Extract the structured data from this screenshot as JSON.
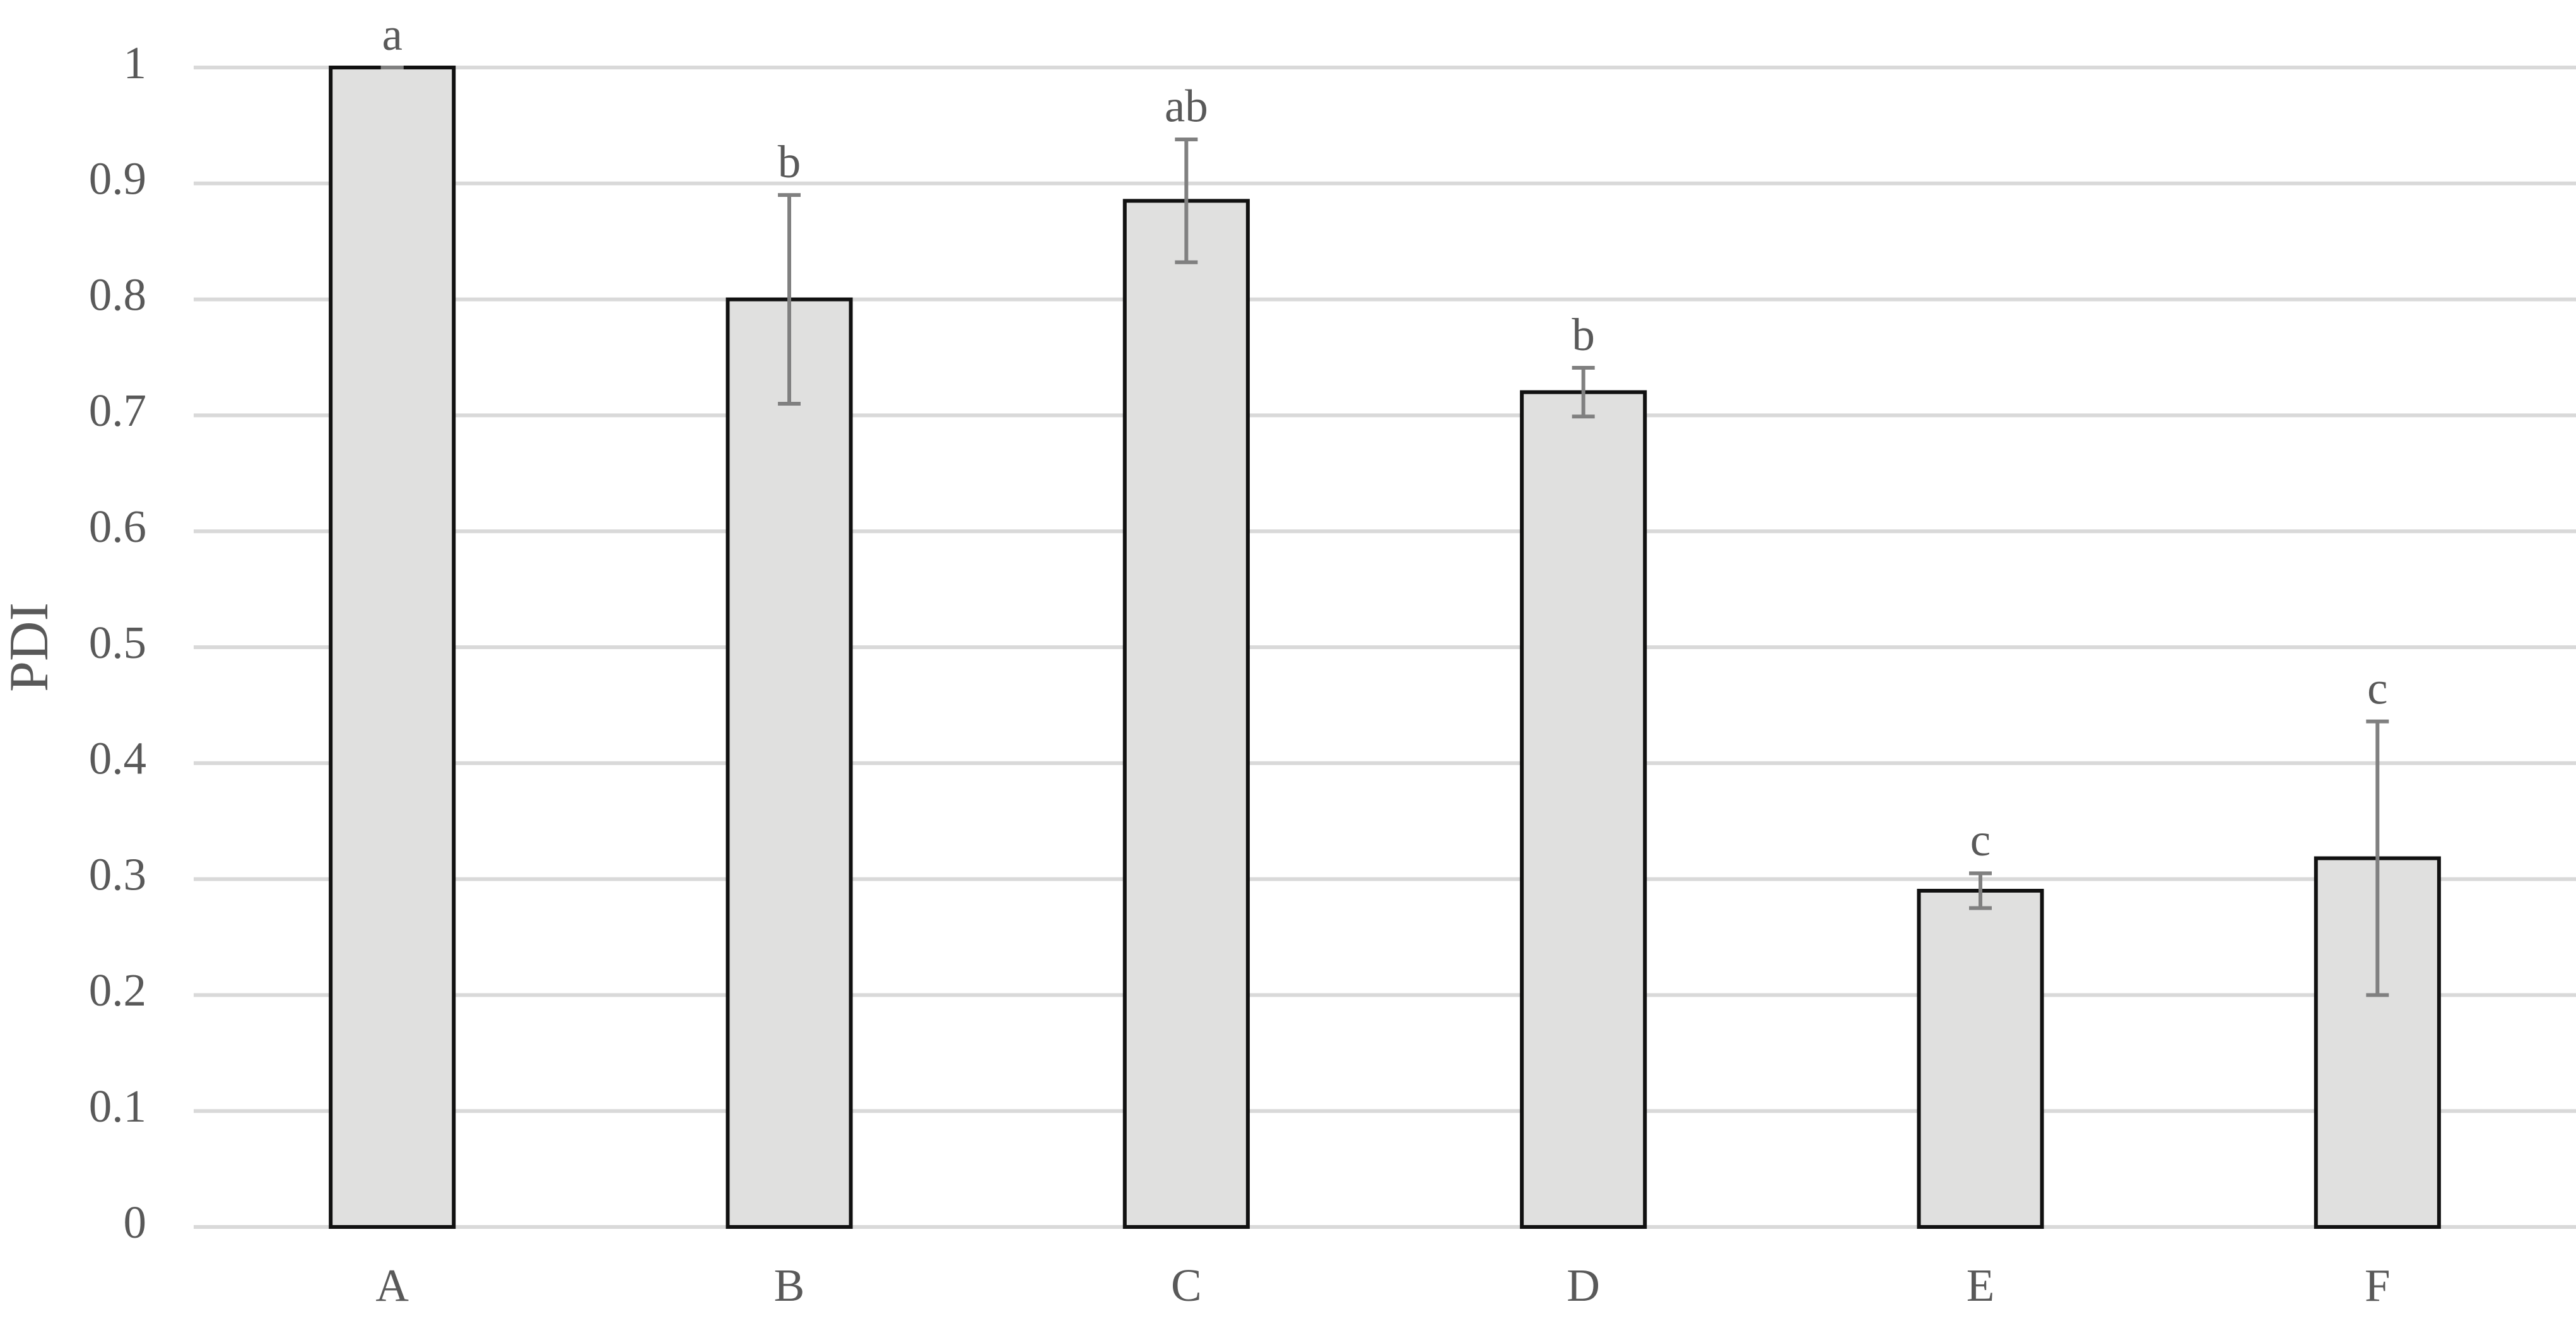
{
  "chart_data": {
    "type": "bar",
    "y_label": "PDI",
    "categories": [
      "A",
      "B",
      "C",
      "D",
      "E",
      "F"
    ],
    "values": [
      1.0,
      0.8,
      0.885,
      0.72,
      0.29,
      0.318
    ],
    "errors": [
      0,
      0.09,
      0.053,
      0.021,
      0.015,
      0.118
    ],
    "labels": [
      "a",
      "b",
      "ab",
      "b",
      "c",
      "c"
    ],
    "color": "#e0e0df",
    "edge_color": "#111111",
    "error_color": "#808080",
    "ylim": [
      0,
      1
    ],
    "yticks": [
      0,
      0.1,
      0.2,
      0.3,
      0.4,
      0.5,
      0.6,
      0.7,
      0.8,
      0.9,
      1
    ],
    "grid": true
  }
}
